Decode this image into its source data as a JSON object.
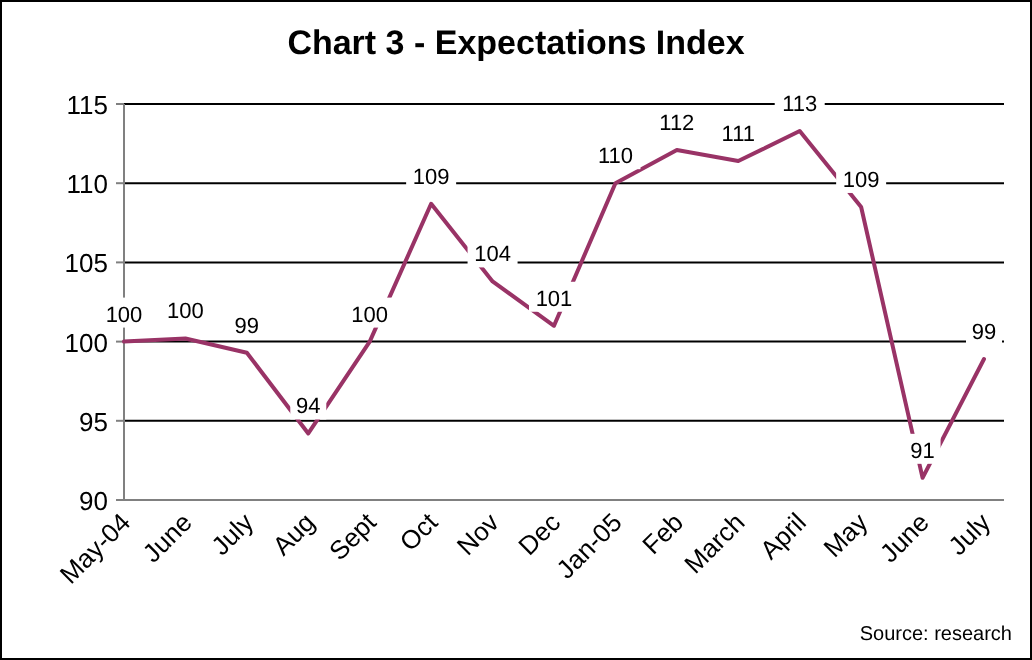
{
  "chart_data": {
    "type": "line",
    "title": "Chart 3 - Expectations Index",
    "categories": [
      "May-04",
      "June",
      "July",
      "Aug",
      "Sept",
      "Oct",
      "Nov",
      "Dec",
      "Jan-05",
      "Feb",
      "March",
      "April",
      "May",
      "June",
      "July"
    ],
    "series": [
      {
        "color": "#993366",
        "values": [
          100,
          100.2,
          99.3,
          94.2,
          100,
          108.7,
          103.8,
          101,
          110,
          112.1,
          111.4,
          113.3,
          108.5,
          91.4,
          98.9
        ],
        "value_labels": [
          "100",
          "100",
          "99",
          "94",
          "100",
          "109",
          "104",
          "101",
          "110",
          "112",
          "111",
          "113",
          "109",
          "91",
          "99"
        ]
      }
    ],
    "ylim": [
      90,
      115
    ],
    "yticks": [
      90,
      95,
      100,
      105,
      110,
      115
    ],
    "grid": "y",
    "annotations": [
      "Source: research"
    ]
  }
}
